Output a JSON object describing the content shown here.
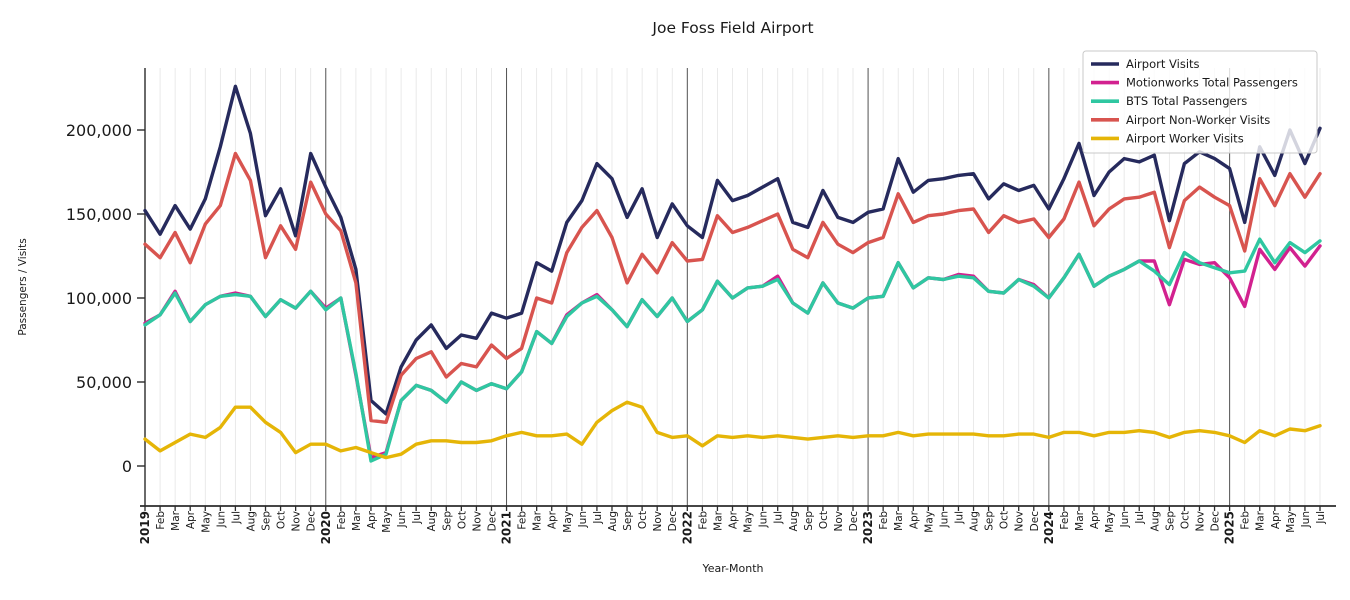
{
  "title": "Joe Foss Field Airport",
  "chart_data": {
    "type": "line",
    "title": "Joe Foss Field Airport",
    "xlabel": "Year-Month",
    "ylabel": "Passengers / Visits",
    "legend_position": "upper right",
    "grid": "vertical gridline at every month; darker vertical line at every January",
    "x_start": "2019-01",
    "x_end": "2025-07",
    "x_tick_labels": [
      "2019",
      "Feb",
      "Mar",
      "Apr",
      "May",
      "Jun",
      "Jul",
      "Aug",
      "Sep",
      "Oct",
      "Nov",
      "Dec",
      "2020",
      "Feb",
      "Mar",
      "Apr",
      "May",
      "Jun",
      "Jul",
      "Aug",
      "Sep",
      "Oct",
      "Nov",
      "Dec",
      "2021",
      "Feb",
      "Mar",
      "Apr",
      "May",
      "Jun",
      "Jul",
      "Aug",
      "Sep",
      "Oct",
      "Nov",
      "Dec",
      "2022",
      "Feb",
      "Mar",
      "Apr",
      "May",
      "Jun",
      "Jul",
      "Aug",
      "Sep",
      "Oct",
      "Nov",
      "Dec",
      "2023",
      "Feb",
      "Mar",
      "Apr",
      "May",
      "Jun",
      "Jul",
      "Aug",
      "Sep",
      "Oct",
      "Nov",
      "Dec",
      "2024",
      "Feb",
      "Mar",
      "Apr",
      "May",
      "Jun",
      "Jul",
      "Aug",
      "Sep",
      "Oct",
      "Nov",
      "Dec",
      "2025",
      "Feb",
      "Mar",
      "Apr",
      "May",
      "Jun",
      "Jul"
    ],
    "y_ticks": [
      0,
      50000,
      100000,
      150000,
      200000
    ],
    "ylim": [
      -24000,
      237000
    ],
    "colors": {
      "airport_visits": "#262a5d",
      "motionworks": "#d2218f",
      "bts": "#2fc7a1",
      "non_worker": "#d8544f",
      "worker": "#e5b507",
      "grid_minor": "#dcdcdc",
      "grid_year": "#3f3f3f",
      "spine": "#2b2b2b",
      "legend_border": "#c9c9c9"
    },
    "series": [
      {
        "name": "Airport Visits",
        "color": "#262a5d",
        "values": [
          152000,
          138000,
          155000,
          141000,
          159000,
          190000,
          226000,
          198000,
          149000,
          165000,
          137000,
          186000,
          166000,
          148000,
          117000,
          39000,
          31000,
          59000,
          75000,
          84000,
          70000,
          78000,
          76000,
          91000,
          88000,
          91000,
          121000,
          116000,
          145000,
          158000,
          180000,
          171000,
          148000,
          165000,
          136000,
          156000,
          143000,
          136000,
          170000,
          158000,
          161000,
          166000,
          171000,
          145000,
          142000,
          164000,
          148000,
          145000,
          151000,
          153000,
          183000,
          163000,
          170000,
          171000,
          173000,
          174000,
          159000,
          168000,
          164000,
          167000,
          153000,
          171000,
          192000,
          161000,
          175000,
          183000,
          181000,
          185000,
          146000,
          180000,
          187000,
          183000,
          177000,
          145000,
          190000,
          173000,
          200000,
          180000,
          201000
        ]
      },
      {
        "name": "Motionworks Total Passengers",
        "color": "#d2218f",
        "values": [
          85000,
          90000,
          104000,
          86000,
          96000,
          101000,
          103000,
          101000,
          89000,
          99000,
          94000,
          104000,
          94000,
          100000,
          54000,
          5000,
          8000,
          39000,
          48000,
          45000,
          38000,
          50000,
          45000,
          49000,
          46000,
          56000,
          80000,
          73000,
          90000,
          97000,
          102000,
          93000,
          83000,
          99000,
          89000,
          100000,
          86000,
          93000,
          110000,
          100000,
          106000,
          107000,
          113000,
          97000,
          91000,
          109000,
          97000,
          94000,
          100000,
          101000,
          121000,
          106000,
          112000,
          111000,
          114000,
          113000,
          104000,
          103000,
          111000,
          108000,
          100000,
          112000,
          126000,
          107000,
          113000,
          117000,
          122000,
          122000,
          96000,
          123000,
          120000,
          121000,
          112000,
          95000,
          129000,
          117000,
          130000,
          119000,
          131000
        ]
      },
      {
        "name": "BTS Total Passengers",
        "color": "#2fc7a1",
        "values": [
          84000,
          90000,
          103000,
          86000,
          96000,
          101000,
          102000,
          101000,
          89000,
          99000,
          94000,
          104000,
          93000,
          100000,
          55000,
          3000,
          7000,
          39000,
          48000,
          45000,
          38000,
          50000,
          45000,
          49000,
          46000,
          56000,
          80000,
          73000,
          89000,
          97000,
          101000,
          93000,
          83000,
          99000,
          89000,
          100000,
          86000,
          93000,
          110000,
          100000,
          106000,
          107000,
          111000,
          97000,
          91000,
          109000,
          97000,
          94000,
          100000,
          101000,
          121000,
          106000,
          112000,
          111000,
          113000,
          112000,
          104000,
          103000,
          111000,
          107000,
          100000,
          112000,
          126000,
          107000,
          113000,
          117000,
          122000,
          116000,
          108000,
          127000,
          121000,
          118000,
          115000,
          116000,
          135000,
          121000,
          133000,
          127000,
          134000
        ]
      },
      {
        "name": "Airport Non-Worker Visits",
        "color": "#d8544f",
        "values": [
          132000,
          124000,
          139000,
          121000,
          144000,
          155000,
          186000,
          170000,
          124000,
          143000,
          129000,
          169000,
          150000,
          140000,
          109000,
          27000,
          26000,
          54000,
          64000,
          68000,
          53000,
          61000,
          59000,
          72000,
          64000,
          70000,
          100000,
          97000,
          127000,
          142000,
          152000,
          136000,
          109000,
          126000,
          115000,
          133000,
          122000,
          123000,
          149000,
          139000,
          142000,
          146000,
          150000,
          129000,
          124000,
          145000,
          132000,
          127000,
          133000,
          136000,
          162000,
          145000,
          149000,
          150000,
          152000,
          153000,
          139000,
          149000,
          145000,
          147000,
          136000,
          147000,
          169000,
          143000,
          153000,
          159000,
          160000,
          163000,
          130000,
          158000,
          166000,
          160000,
          155000,
          128000,
          171000,
          155000,
          174000,
          160000,
          174000
        ]
      },
      {
        "name": "Airport Worker Visits",
        "color": "#e5b507",
        "values": [
          16000,
          9000,
          14000,
          19000,
          17000,
          23000,
          35000,
          35000,
          26000,
          20000,
          8000,
          13000,
          13000,
          9000,
          11000,
          8000,
          5000,
          7000,
          13000,
          15000,
          15000,
          14000,
          14000,
          15000,
          18000,
          20000,
          18000,
          18000,
          19000,
          13000,
          26000,
          33000,
          38000,
          35000,
          20000,
          17000,
          18000,
          12000,
          18000,
          17000,
          18000,
          17000,
          18000,
          17000,
          16000,
          17000,
          18000,
          17000,
          18000,
          18000,
          20000,
          18000,
          19000,
          19000,
          19000,
          19000,
          18000,
          18000,
          19000,
          19000,
          17000,
          20000,
          20000,
          18000,
          20000,
          20000,
          21000,
          20000,
          17000,
          20000,
          21000,
          20000,
          18000,
          14000,
          21000,
          18000,
          22000,
          21000,
          24000
        ]
      }
    ]
  }
}
